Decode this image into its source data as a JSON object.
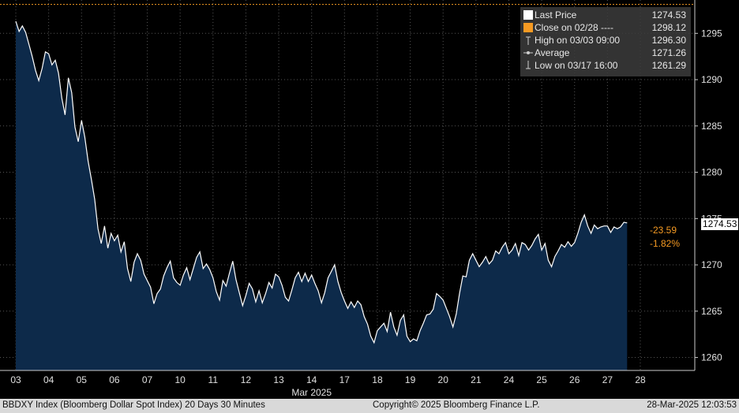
{
  "chart_data": {
    "type": "area",
    "x_labels": [
      "03",
      "04",
      "05",
      "06",
      "07",
      "10",
      "11",
      "12",
      "13",
      "14",
      "17",
      "18",
      "19",
      "20",
      "21",
      "24",
      "25",
      "26",
      "27",
      "28"
    ],
    "x_month_label": "Mar 2025",
    "y_ticks": [
      1260,
      1265,
      1270,
      1275,
      1280,
      1285,
      1290,
      1295
    ],
    "ylim": [
      1258.6,
      1298.6
    ],
    "grid": true,
    "reference_line": {
      "label": "Close on 02/28",
      "value": 1298.12,
      "color": "#f59a23"
    },
    "series": [
      {
        "name": "Last Price",
        "color": "#ffffff",
        "fill": "#0d2a4a",
        "points": [
          [
            0.0,
            1296.3
          ],
          [
            0.1,
            1295.2
          ],
          [
            0.2,
            1295.8
          ],
          [
            0.3,
            1295.1
          ],
          [
            0.4,
            1293.8
          ],
          [
            0.5,
            1292.5
          ],
          [
            0.6,
            1291.0
          ],
          [
            0.7,
            1289.9
          ],
          [
            0.8,
            1291.2
          ],
          [
            0.9,
            1293.0
          ],
          [
            1.0,
            1292.8
          ],
          [
            1.1,
            1291.6
          ],
          [
            1.2,
            1292.1
          ],
          [
            1.3,
            1290.7
          ],
          [
            1.4,
            1288.0
          ],
          [
            1.5,
            1286.2
          ],
          [
            1.6,
            1290.2
          ],
          [
            1.7,
            1288.6
          ],
          [
            1.8,
            1284.9
          ],
          [
            1.9,
            1283.3
          ],
          [
            2.0,
            1285.6
          ],
          [
            2.1,
            1283.8
          ],
          [
            2.2,
            1281.2
          ],
          [
            2.3,
            1279.2
          ],
          [
            2.4,
            1277.1
          ],
          [
            2.5,
            1273.9
          ],
          [
            2.6,
            1272.3
          ],
          [
            2.7,
            1274.2
          ],
          [
            2.8,
            1271.8
          ],
          [
            2.9,
            1273.4
          ],
          [
            3.0,
            1272.6
          ],
          [
            3.1,
            1273.2
          ],
          [
            3.2,
            1271.4
          ],
          [
            3.3,
            1272.5
          ],
          [
            3.4,
            1269.6
          ],
          [
            3.5,
            1268.2
          ],
          [
            3.6,
            1270.3
          ],
          [
            3.7,
            1271.2
          ],
          [
            3.8,
            1270.5
          ],
          [
            3.9,
            1269.0
          ],
          [
            4.0,
            1268.3
          ],
          [
            4.1,
            1267.6
          ],
          [
            4.2,
            1265.8
          ],
          [
            4.3,
            1266.9
          ],
          [
            4.4,
            1267.4
          ],
          [
            4.5,
            1268.8
          ],
          [
            4.6,
            1269.7
          ],
          [
            4.7,
            1270.4
          ],
          [
            4.8,
            1268.6
          ],
          [
            4.9,
            1268.1
          ],
          [
            5.0,
            1267.8
          ],
          [
            5.1,
            1268.9
          ],
          [
            5.2,
            1269.7
          ],
          [
            5.3,
            1268.4
          ],
          [
            5.4,
            1269.6
          ],
          [
            5.5,
            1270.8
          ],
          [
            5.6,
            1271.4
          ],
          [
            5.7,
            1269.6
          ],
          [
            5.8,
            1270.1
          ],
          [
            5.9,
            1269.5
          ],
          [
            6.0,
            1268.6
          ],
          [
            6.1,
            1267.1
          ],
          [
            6.2,
            1266.2
          ],
          [
            6.3,
            1268.3
          ],
          [
            6.4,
            1267.7
          ],
          [
            6.5,
            1269.1
          ],
          [
            6.6,
            1270.4
          ],
          [
            6.7,
            1268.4
          ],
          [
            6.8,
            1267.0
          ],
          [
            6.9,
            1265.6
          ],
          [
            7.0,
            1266.7
          ],
          [
            7.1,
            1268.0
          ],
          [
            7.2,
            1267.4
          ],
          [
            7.3,
            1266.0
          ],
          [
            7.4,
            1267.2
          ],
          [
            7.5,
            1265.9
          ],
          [
            7.6,
            1266.9
          ],
          [
            7.7,
            1268.1
          ],
          [
            7.8,
            1267.5
          ],
          [
            7.9,
            1269.0
          ],
          [
            8.0,
            1268.7
          ],
          [
            8.1,
            1267.8
          ],
          [
            8.2,
            1266.5
          ],
          [
            8.3,
            1266.1
          ],
          [
            8.4,
            1267.3
          ],
          [
            8.5,
            1268.6
          ],
          [
            8.6,
            1269.2
          ],
          [
            8.7,
            1268.2
          ],
          [
            8.8,
            1269.1
          ],
          [
            8.9,
            1268.2
          ],
          [
            9.0,
            1268.9
          ],
          [
            9.1,
            1268.0
          ],
          [
            9.2,
            1267.2
          ],
          [
            9.3,
            1265.9
          ],
          [
            9.4,
            1267.0
          ],
          [
            9.5,
            1268.6
          ],
          [
            9.6,
            1269.3
          ],
          [
            9.7,
            1270.0
          ],
          [
            9.8,
            1268.2
          ],
          [
            9.9,
            1267.0
          ],
          [
            10.0,
            1266.1
          ],
          [
            10.1,
            1265.3
          ],
          [
            10.2,
            1266.0
          ],
          [
            10.3,
            1265.4
          ],
          [
            10.4,
            1266.1
          ],
          [
            10.5,
            1265.7
          ],
          [
            10.6,
            1264.4
          ],
          [
            10.7,
            1263.6
          ],
          [
            10.8,
            1262.3
          ],
          [
            10.9,
            1261.6
          ],
          [
            11.0,
            1262.9
          ],
          [
            11.1,
            1263.3
          ],
          [
            11.2,
            1263.7
          ],
          [
            11.3,
            1262.8
          ],
          [
            11.4,
            1264.9
          ],
          [
            11.5,
            1263.3
          ],
          [
            11.6,
            1262.4
          ],
          [
            11.7,
            1264.0
          ],
          [
            11.8,
            1264.6
          ],
          [
            11.9,
            1262.3
          ],
          [
            12.0,
            1261.7
          ],
          [
            12.1,
            1262.0
          ],
          [
            12.2,
            1261.8
          ],
          [
            12.3,
            1262.9
          ],
          [
            12.4,
            1263.7
          ],
          [
            12.5,
            1264.6
          ],
          [
            12.6,
            1264.7
          ],
          [
            12.7,
            1265.2
          ],
          [
            12.8,
            1266.9
          ],
          [
            12.9,
            1266.6
          ],
          [
            13.0,
            1266.2
          ],
          [
            13.1,
            1265.3
          ],
          [
            13.2,
            1264.4
          ],
          [
            13.3,
            1263.3
          ],
          [
            13.4,
            1264.7
          ],
          [
            13.5,
            1266.9
          ],
          [
            13.6,
            1268.8
          ],
          [
            13.7,
            1268.7
          ],
          [
            13.8,
            1270.5
          ],
          [
            13.9,
            1271.2
          ],
          [
            14.0,
            1270.5
          ],
          [
            14.1,
            1269.8
          ],
          [
            14.2,
            1270.3
          ],
          [
            14.3,
            1270.9
          ],
          [
            14.4,
            1270.1
          ],
          [
            14.5,
            1270.5
          ],
          [
            14.6,
            1271.5
          ],
          [
            14.7,
            1271.2
          ],
          [
            14.8,
            1271.9
          ],
          [
            14.9,
            1272.4
          ],
          [
            15.0,
            1271.2
          ],
          [
            15.1,
            1271.6
          ],
          [
            15.2,
            1272.3
          ],
          [
            15.3,
            1271.0
          ],
          [
            15.4,
            1272.4
          ],
          [
            15.5,
            1272.2
          ],
          [
            15.6,
            1271.6
          ],
          [
            15.7,
            1272.1
          ],
          [
            15.8,
            1272.8
          ],
          [
            15.9,
            1273.3
          ],
          [
            16.0,
            1271.6
          ],
          [
            16.1,
            1272.3
          ],
          [
            16.2,
            1270.5
          ],
          [
            16.3,
            1269.8
          ],
          [
            16.4,
            1270.9
          ],
          [
            16.5,
            1271.5
          ],
          [
            16.6,
            1272.2
          ],
          [
            16.7,
            1271.9
          ],
          [
            16.8,
            1272.5
          ],
          [
            16.9,
            1272.0
          ],
          [
            17.0,
            1272.4
          ],
          [
            17.1,
            1273.4
          ],
          [
            17.2,
            1274.6
          ],
          [
            17.3,
            1275.4
          ],
          [
            17.4,
            1274.2
          ],
          [
            17.5,
            1273.4
          ],
          [
            17.6,
            1274.3
          ],
          [
            17.7,
            1273.9
          ],
          [
            17.8,
            1274.1
          ],
          [
            17.9,
            1274.2
          ],
          [
            18.0,
            1274.2
          ],
          [
            18.1,
            1273.5
          ],
          [
            18.2,
            1274.1
          ],
          [
            18.3,
            1273.9
          ],
          [
            18.4,
            1274.1
          ],
          [
            18.5,
            1274.6
          ],
          [
            18.6,
            1274.53
          ]
        ]
      }
    ],
    "annotations": {
      "last_value_label": "1274.53",
      "change": "-23.59",
      "change_pct": "-1.82%"
    }
  },
  "legend": [
    {
      "icon": "white-square-icon",
      "label": "Last Price",
      "value": "1274.53",
      "color": "#ffffff"
    },
    {
      "icon": "orange-square-icon",
      "label": "Close on 02/28  ----",
      "value": "1298.12",
      "color": "#f59a23"
    },
    {
      "icon": "high-marker-icon",
      "label": "High on 03/03 09:00",
      "value": "1296.30",
      "color": "#cfcfcf"
    },
    {
      "icon": "average-marker-icon",
      "label": "Average",
      "value": "1271.26",
      "color": "#cfcfcf"
    },
    {
      "icon": "low-marker-icon",
      "label": "Low on 03/17 16:00",
      "value": "1261.29",
      "color": "#cfcfcf"
    }
  ],
  "footer": {
    "left": "BBDXY Index (Bloomberg Dollar Spot Index) 20 Days 30 Minutes",
    "center": "Copyright© 2025 Bloomberg Finance L.P.",
    "right": "28-Mar-2025 12:03:53"
  },
  "colors": {
    "background": "#000000",
    "area_fill": "#0d2a4a",
    "line": "#ffffff",
    "accent": "#f59a23",
    "grid": "#555555",
    "footer_bg": "#d9d9d9"
  }
}
